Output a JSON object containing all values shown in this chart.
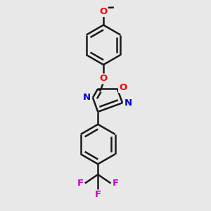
{
  "background_color": "#e8e8e8",
  "bond_color": "#1a1a1a",
  "bond_width": 1.8,
  "atom_colors": {
    "O": "#ff0000",
    "N": "#0000cc",
    "F": "#cc00cc",
    "C": "#1a1a1a"
  },
  "fig_width": 3.0,
  "fig_height": 3.0,
  "dpi": 100,
  "xlim": [
    0,
    10
  ],
  "ylim": [
    0,
    10
  ]
}
